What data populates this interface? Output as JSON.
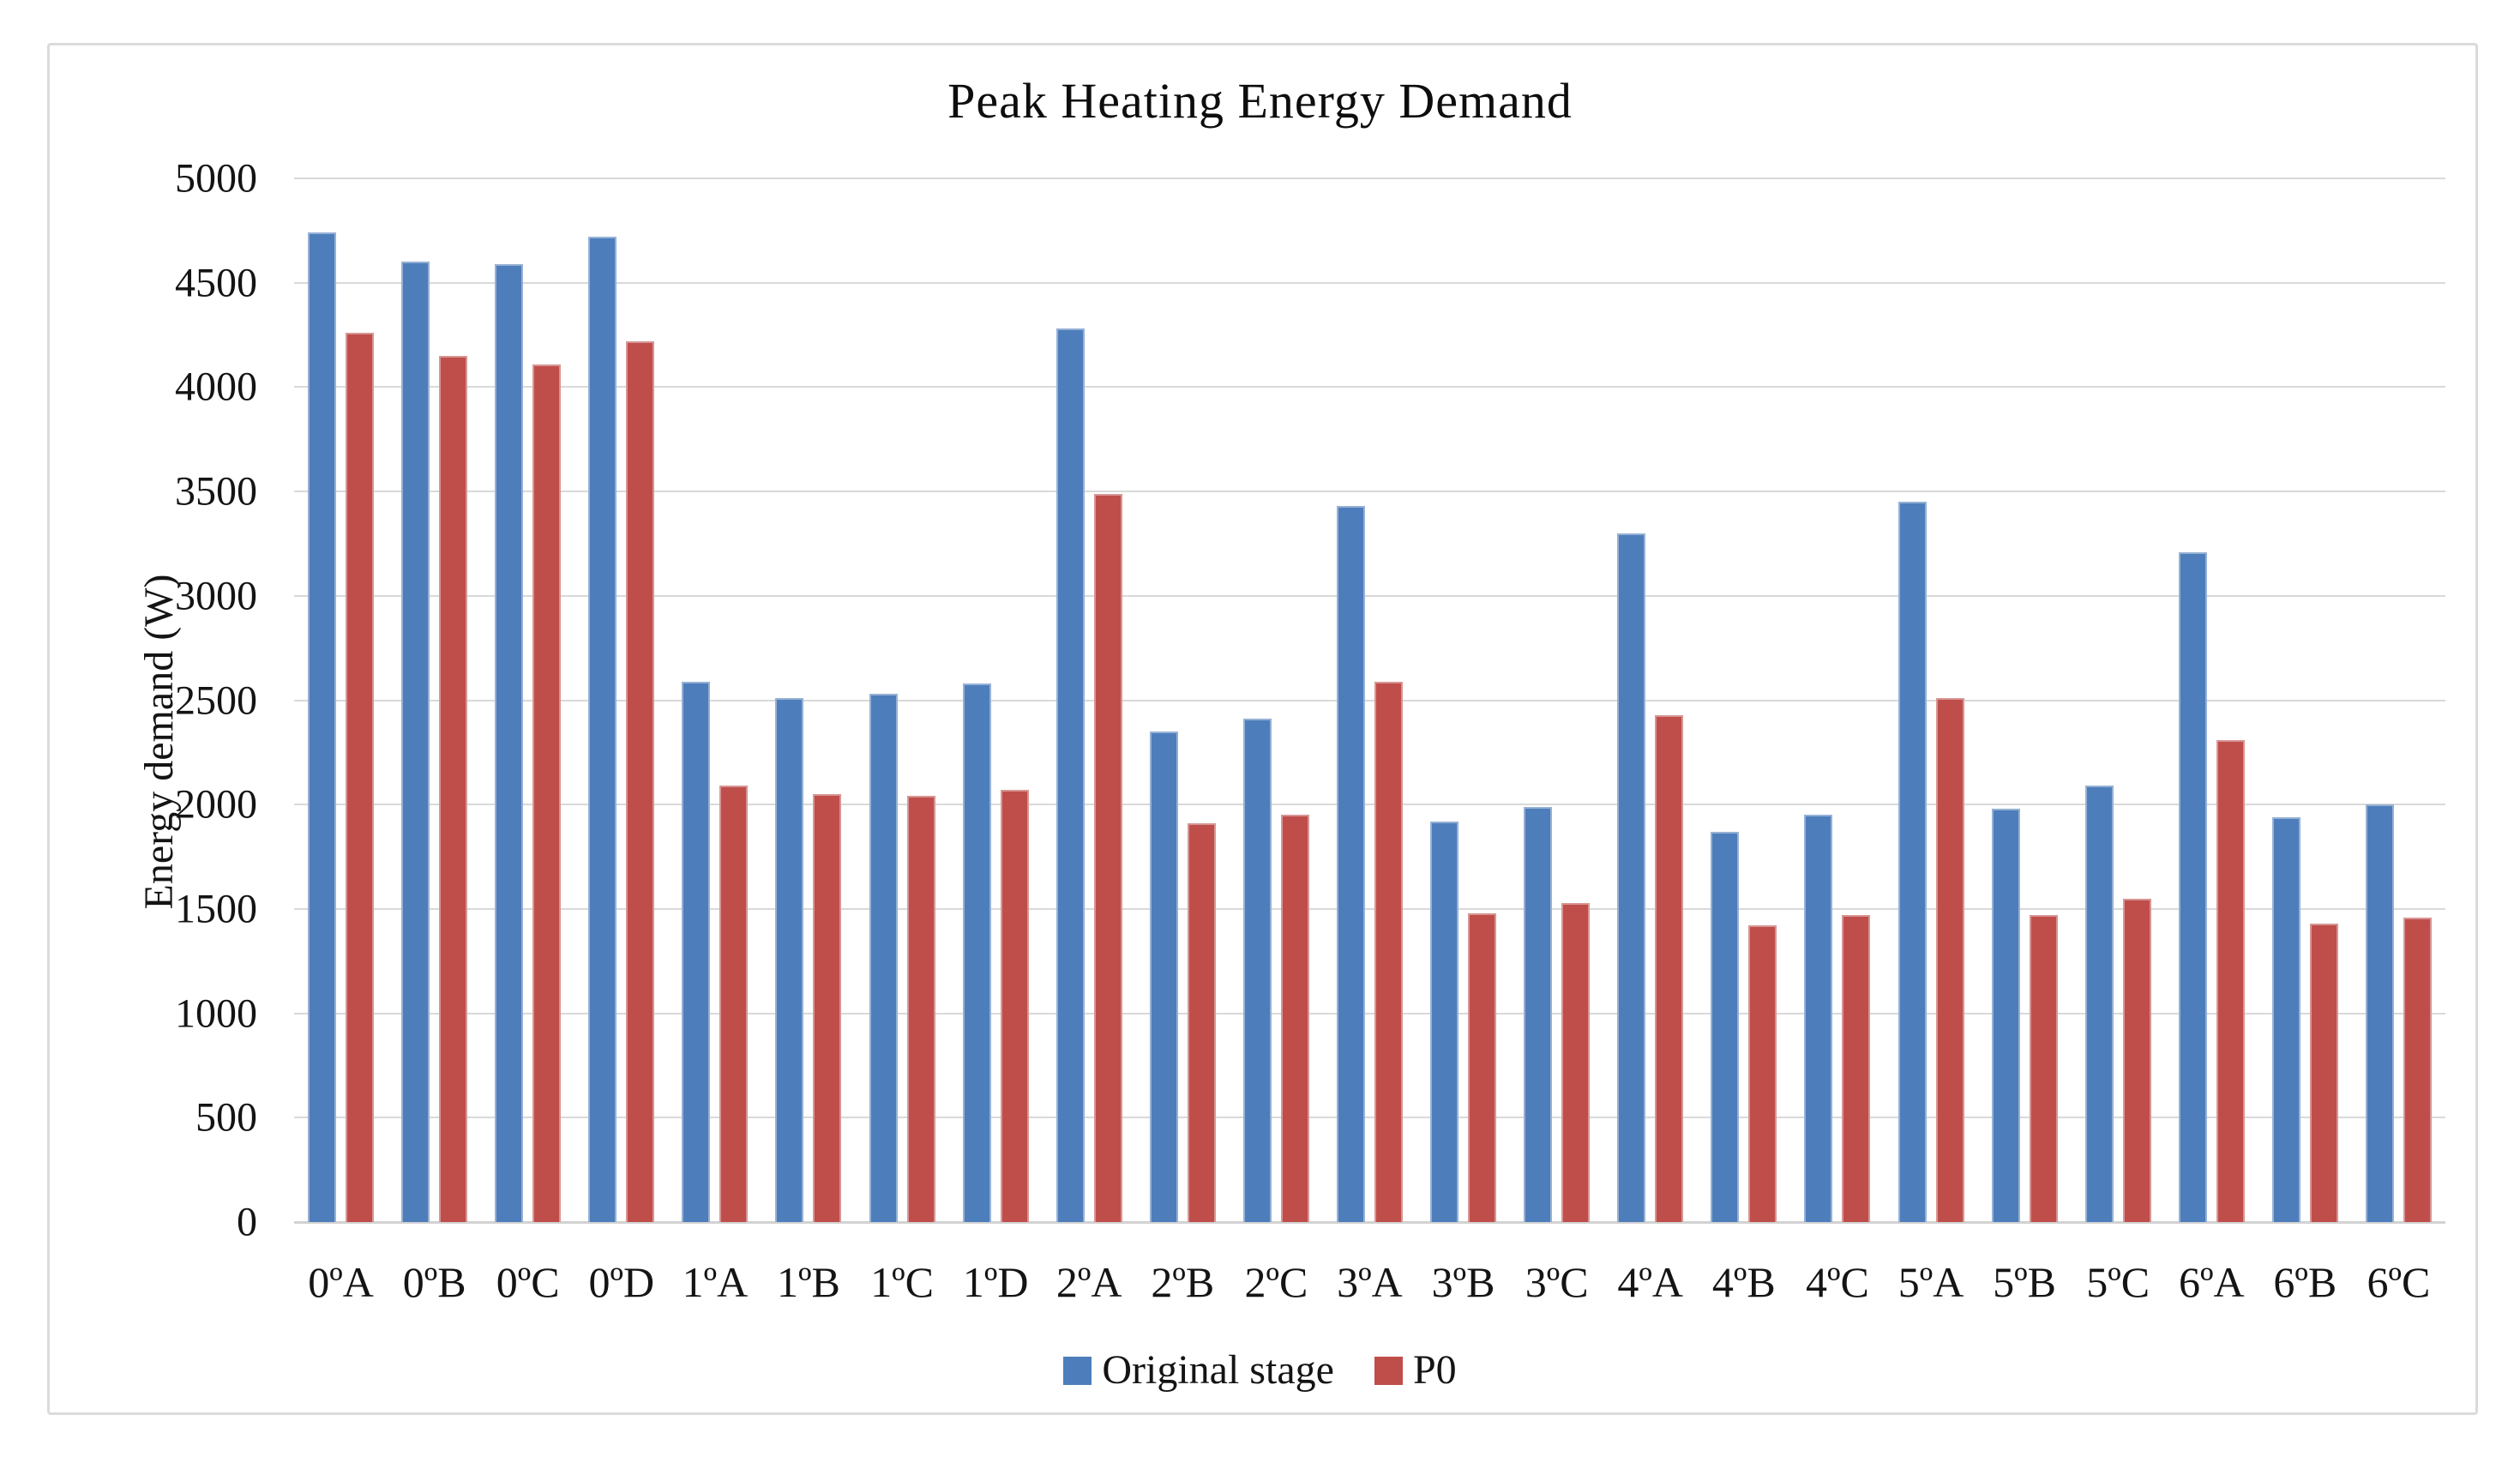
{
  "chart_data": {
    "type": "bar",
    "title": "Peak Heating Energy Demand",
    "xlabel": "",
    "ylabel": "Energy demand (W)",
    "categories": [
      "0ºA",
      "0ºB",
      "0ºC",
      "0ºD",
      "1ºA",
      "1ºB",
      "1ºC",
      "1ºD",
      "2ºA",
      "2ºB",
      "2ºC",
      "3ºA",
      "3ºB",
      "3ºC",
      "4ºA",
      "4ºB",
      "4ºC",
      "5ºA",
      "5ºB",
      "5ºC",
      "6ºA",
      "6ºB",
      "6ºC"
    ],
    "series": [
      {
        "name": "Original stage",
        "color": "#4D7EBB",
        "edge_color": "#96B1D4",
        "values": [
          4740,
          4600,
          4590,
          4720,
          2590,
          2510,
          2530,
          2580,
          4280,
          2350,
          2410,
          3430,
          1920,
          1990,
          3300,
          1870,
          1950,
          3450,
          1980,
          2090,
          3210,
          1940,
          2000
        ]
      },
      {
        "name": "P0",
        "color": "#BF4E4B",
        "edge_color": "#D79694",
        "values": [
          4260,
          4150,
          4110,
          4220,
          2090,
          2050,
          2040,
          2070,
          3490,
          1910,
          1950,
          2590,
          1480,
          1530,
          2430,
          1420,
          1470,
          2510,
          1470,
          1550,
          2310,
          1430,
          1460
        ]
      }
    ],
    "ylim": [
      0,
      5000
    ],
    "yticks": [
      0,
      500,
      1000,
      1500,
      2000,
      2500,
      3000,
      3500,
      4000,
      4500,
      5000
    ],
    "grid": "horizontal",
    "legend_position": "bottom-center",
    "colors": {
      "gridline": "#D9D9D9",
      "baseline": "#D2D2D2",
      "text": "#141414",
      "frame_border": "#DBDBDB",
      "background": "#FFFFFF"
    }
  }
}
